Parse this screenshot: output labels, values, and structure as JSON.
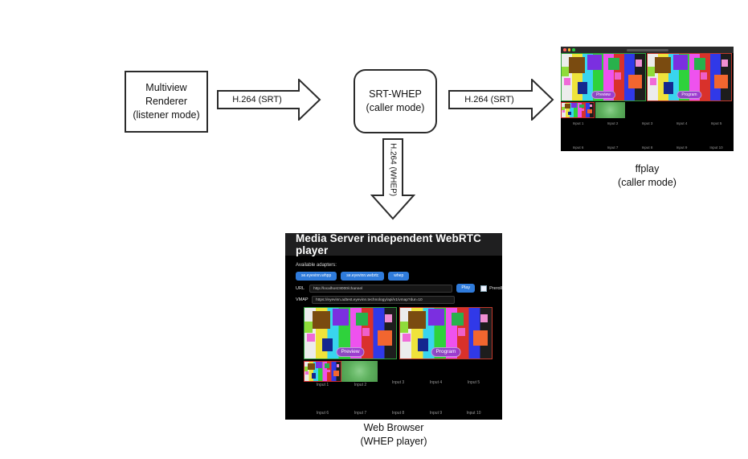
{
  "diagram": {
    "nodes": {
      "multiview": {
        "lines": [
          "Multiview",
          "Renderer",
          "(listener mode)"
        ]
      },
      "srtwhep": {
        "lines": [
          "SRT-WHEP",
          "(caller mode)"
        ]
      }
    },
    "arrows": {
      "srt1": "H.264 (SRT)",
      "srt2": "H.264 (SRT)",
      "whep": "H.264 (WHEP)"
    },
    "captions": {
      "ffplay": {
        "line1": "ffplay",
        "line2": "(caller mode)"
      },
      "browser": {
        "line1": "Web Browser",
        "line2": "(WHEP player)"
      }
    }
  },
  "ffplay": {
    "preview_label": "Preview",
    "program_label": "Program",
    "inputs_row1": [
      "Input 1",
      "Input 2",
      "Input 3",
      "Input 4",
      "Input 5"
    ],
    "inputs_row2": [
      "Input 6",
      "Input 7",
      "Input 8",
      "Input 9",
      "Input 10"
    ]
  },
  "browser": {
    "header": "Media Server independent WebRTC player",
    "adapters_label": "Available adapters:",
    "adapter_buttons": [
      "se.eyevinn.whpp",
      "se.eyevinn.webrtc",
      "whep"
    ],
    "url_label": "URL",
    "url_value": "http://localhost:8000/channel",
    "play_label": "Play",
    "preroll_label": "Preroll",
    "vmap_label": "VMAP",
    "vmap_value": "https://eyevinn.adtest.eyevinn.technology/api/v1/vmap?dur=10",
    "preview_label": "Preview",
    "program_label": "Program",
    "inputs_row1": [
      "Input 1",
      "Input 2",
      "Input 3",
      "Input 4",
      "Input 5"
    ],
    "inputs_row2": [
      "Input 6",
      "Input 7",
      "Input 8",
      "Input 9",
      "Input 10"
    ]
  },
  "colors": {
    "accent_blue": "#2f7bdb",
    "preview_border_green": "#2e9e3a",
    "program_border_red": "#c0392b",
    "badge_purple": "#963ccd",
    "selected_thumb_red": "#cc2a2a"
  }
}
